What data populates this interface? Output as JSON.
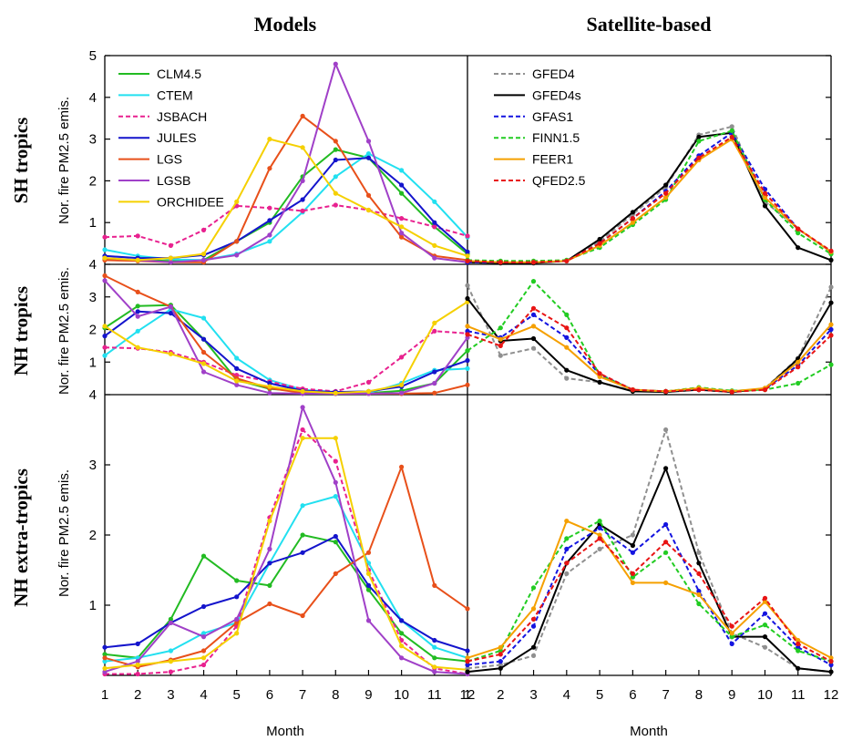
{
  "column_titles": [
    "Models",
    "Satellite-based"
  ],
  "row_titles": [
    "SH tropics",
    "NH tropics",
    "NH extra-tropics"
  ],
  "ylabel": "Nor. fire PM2.5 emis.",
  "xlabel": "Month",
  "x_ticks": [
    "1",
    "2",
    "3",
    "4",
    "5",
    "6",
    "7",
    "8",
    "9",
    "10",
    "11",
    "12"
  ],
  "y_ticks": {
    "sh": [
      "1",
      "2",
      "3",
      "4",
      "5"
    ],
    "nh": [
      "1",
      "2",
      "3",
      "4"
    ],
    "nhx": [
      "1",
      "2",
      "3",
      "4"
    ]
  },
  "colors": {
    "CLM4.5": "#22bb22",
    "CTEM": "#22e0f0",
    "JSBACH": "#e8218f",
    "JULES": "#1414cc",
    "LGS": "#e8501a",
    "LGSB": "#a040c8",
    "ORCHIDEE": "#f5d000",
    "GFED4": "#909090",
    "GFED4s": "#000000",
    "GFAS1": "#1414e0",
    "FINN1.5": "#22cc22",
    "FEER1": "#f5a000",
    "QFED2.5": "#e81414"
  },
  "chart_data": [
    {
      "type": "line",
      "panel": "sh-models",
      "ylim": [
        0,
        5
      ],
      "x": [
        1,
        2,
        3,
        4,
        5,
        6,
        7,
        8,
        9,
        10,
        11,
        12
      ],
      "legend_position": "top-left",
      "series": [
        {
          "name": "CLM4.5",
          "dashed": false,
          "values": [
            0.12,
            0.1,
            0.08,
            0.1,
            0.55,
            1.0,
            2.1,
            2.75,
            2.55,
            1.7,
            0.9,
            0.25
          ]
        },
        {
          "name": "CTEM",
          "dashed": false,
          "values": [
            0.35,
            0.2,
            0.12,
            0.1,
            0.25,
            0.55,
            1.25,
            2.1,
            2.65,
            2.25,
            1.5,
            0.65
          ]
        },
        {
          "name": "JSBACH",
          "dashed": true,
          "values": [
            0.65,
            0.68,
            0.45,
            0.82,
            1.4,
            1.35,
            1.28,
            1.42,
            1.3,
            1.1,
            0.9,
            0.68
          ]
        },
        {
          "name": "JULES",
          "dashed": false,
          "values": [
            0.2,
            0.15,
            0.15,
            0.22,
            0.55,
            1.05,
            1.55,
            2.5,
            2.55,
            1.9,
            1.0,
            0.3
          ]
        },
        {
          "name": "LGS",
          "dashed": false,
          "values": [
            0.1,
            0.08,
            0.05,
            0.05,
            0.55,
            2.3,
            3.55,
            2.95,
            1.65,
            0.65,
            0.2,
            0.1
          ]
        },
        {
          "name": "LGSB",
          "dashed": false,
          "values": [
            0.15,
            0.1,
            0.05,
            0.1,
            0.22,
            0.7,
            2.0,
            4.8,
            2.95,
            0.75,
            0.15,
            0.05
          ]
        },
        {
          "name": "ORCHIDEE",
          "dashed": false,
          "values": [
            0.15,
            0.1,
            0.15,
            0.25,
            1.5,
            3.0,
            2.8,
            1.7,
            1.3,
            0.9,
            0.45,
            0.2
          ]
        }
      ]
    },
    {
      "type": "line",
      "panel": "sh-satellite",
      "ylim": [
        0,
        5
      ],
      "x": [
        1,
        2,
        3,
        4,
        5,
        6,
        7,
        8,
        9,
        10,
        11,
        12
      ],
      "legend_position": "top-left",
      "series": [
        {
          "name": "GFED4",
          "dashed": true,
          "values": [
            0.05,
            0.05,
            0.05,
            0.08,
            0.55,
            1.2,
            1.85,
            3.1,
            3.3,
            1.5,
            0.85,
            0.3
          ]
        },
        {
          "name": "GFED4s",
          "dashed": false,
          "values": [
            0.05,
            0.03,
            0.03,
            0.08,
            0.6,
            1.25,
            1.9,
            3.05,
            3.15,
            1.4,
            0.4,
            0.1
          ]
        },
        {
          "name": "GFAS1",
          "dashed": true,
          "values": [
            0.05,
            0.05,
            0.05,
            0.08,
            0.5,
            1.1,
            1.75,
            2.6,
            3.15,
            1.8,
            0.85,
            0.3
          ]
        },
        {
          "name": "FINN1.5",
          "dashed": true,
          "values": [
            0.1,
            0.08,
            0.08,
            0.1,
            0.4,
            0.95,
            1.55,
            2.95,
            3.2,
            1.55,
            0.75,
            0.25
          ]
        },
        {
          "name": "FEER1",
          "dashed": false,
          "values": [
            0.08,
            0.05,
            0.05,
            0.08,
            0.45,
            1.0,
            1.6,
            2.5,
            3.0,
            1.6,
            0.85,
            0.3
          ]
        },
        {
          "name": "QFED2.5",
          "dashed": true,
          "values": [
            0.08,
            0.05,
            0.05,
            0.08,
            0.5,
            1.1,
            1.7,
            2.55,
            3.05,
            1.7,
            0.85,
            0.32
          ]
        }
      ]
    },
    {
      "type": "line",
      "panel": "nh-models",
      "ylim": [
        0,
        4
      ],
      "x": [
        1,
        2,
        3,
        4,
        5,
        6,
        7,
        8,
        9,
        10,
        11,
        12
      ],
      "series": [
        {
          "name": "CLM4.5",
          "dashed": false,
          "values": [
            2.05,
            2.72,
            2.75,
            1.7,
            0.45,
            0.18,
            0.1,
            0.08,
            0.05,
            0.12,
            0.35,
            1.35
          ]
        },
        {
          "name": "CTEM",
          "dashed": false,
          "values": [
            1.2,
            1.95,
            2.62,
            2.35,
            1.12,
            0.45,
            0.15,
            0.08,
            0.05,
            0.35,
            0.75,
            0.8
          ]
        },
        {
          "name": "JSBACH",
          "dashed": true,
          "values": [
            1.45,
            1.42,
            1.3,
            1.0,
            0.6,
            0.4,
            0.18,
            0.1,
            0.38,
            1.15,
            1.95,
            1.88
          ]
        },
        {
          "name": "JULES",
          "dashed": false,
          "values": [
            1.8,
            2.55,
            2.5,
            1.7,
            0.8,
            0.35,
            0.12,
            0.08,
            0.1,
            0.25,
            0.7,
            1.05
          ]
        },
        {
          "name": "LGS",
          "dashed": false,
          "values": [
            3.65,
            3.15,
            2.7,
            1.3,
            0.5,
            0.2,
            0.05,
            0.03,
            0.03,
            0.03,
            0.05,
            0.3
          ]
        },
        {
          "name": "LGSB",
          "dashed": false,
          "values": [
            3.5,
            2.4,
            2.7,
            0.7,
            0.3,
            0.05,
            0.03,
            0.03,
            0.03,
            0.05,
            0.35,
            1.75
          ]
        },
        {
          "name": "ORCHIDEE",
          "dashed": false,
          "values": [
            2.1,
            1.45,
            1.25,
            0.95,
            0.42,
            0.25,
            0.1,
            0.05,
            0.1,
            0.3,
            2.2,
            2.85
          ]
        }
      ]
    },
    {
      "type": "line",
      "panel": "nh-satellite",
      "ylim": [
        0,
        4
      ],
      "x": [
        1,
        2,
        3,
        4,
        5,
        6,
        7,
        8,
        9,
        10,
        11,
        12
      ],
      "series": [
        {
          "name": "GFED4",
          "dashed": true,
          "values": [
            3.35,
            1.2,
            1.42,
            0.5,
            0.38,
            0.12,
            0.1,
            0.15,
            0.08,
            0.2,
            1.12,
            3.3
          ]
        },
        {
          "name": "GFED4s",
          "dashed": false,
          "values": [
            2.95,
            1.65,
            1.72,
            0.75,
            0.38,
            0.1,
            0.08,
            0.15,
            0.08,
            0.18,
            1.1,
            2.82
          ]
        },
        {
          "name": "GFAS1",
          "dashed": true,
          "values": [
            1.95,
            1.75,
            2.45,
            1.75,
            0.62,
            0.15,
            0.1,
            0.18,
            0.1,
            0.18,
            0.9,
            2.0
          ]
        },
        {
          "name": "FINN1.5",
          "dashed": true,
          "values": [
            1.35,
            2.05,
            3.48,
            2.45,
            0.6,
            0.15,
            0.1,
            0.22,
            0.12,
            0.15,
            0.35,
            0.92
          ]
        },
        {
          "name": "FEER1",
          "dashed": false,
          "values": [
            2.1,
            1.7,
            2.1,
            1.45,
            0.55,
            0.15,
            0.1,
            0.2,
            0.1,
            0.2,
            1.0,
            2.15
          ]
        },
        {
          "name": "QFED2.5",
          "dashed": true,
          "values": [
            1.85,
            1.5,
            2.65,
            2.05,
            0.65,
            0.15,
            0.1,
            0.15,
            0.08,
            0.15,
            0.85,
            1.82
          ]
        }
      ]
    },
    {
      "type": "line",
      "panel": "nhx-models",
      "ylim": [
        0,
        4
      ],
      "x": [
        1,
        2,
        3,
        4,
        5,
        6,
        7,
        8,
        9,
        10,
        11,
        12
      ],
      "series": [
        {
          "name": "CLM4.5",
          "dashed": false,
          "values": [
            0.3,
            0.25,
            0.8,
            1.7,
            1.35,
            1.28,
            2.0,
            1.9,
            1.22,
            0.6,
            0.25,
            0.2
          ]
        },
        {
          "name": "CTEM",
          "dashed": false,
          "values": [
            0.2,
            0.25,
            0.35,
            0.6,
            0.75,
            1.6,
            2.42,
            2.55,
            1.6,
            0.78,
            0.4,
            0.25
          ]
        },
        {
          "name": "JSBACH",
          "dashed": true,
          "values": [
            0.02,
            0.02,
            0.05,
            0.15,
            0.7,
            2.25,
            3.5,
            3.05,
            1.5,
            0.5,
            0.1,
            0.02
          ]
        },
        {
          "name": "JULES",
          "dashed": false,
          "values": [
            0.4,
            0.45,
            0.75,
            0.98,
            1.12,
            1.6,
            1.75,
            1.98,
            1.28,
            0.78,
            0.5,
            0.35
          ]
        },
        {
          "name": "LGS",
          "dashed": false,
          "values": [
            0.25,
            0.12,
            0.22,
            0.35,
            0.75,
            1.02,
            0.85,
            1.45,
            1.75,
            2.97,
            1.28,
            0.95
          ]
        },
        {
          "name": "LGSB",
          "dashed": false,
          "values": [
            0.05,
            0.2,
            0.75,
            0.55,
            0.8,
            1.8,
            3.82,
            2.75,
            0.78,
            0.25,
            0.05,
            0.02
          ]
        },
        {
          "name": "ORCHIDEE",
          "dashed": false,
          "values": [
            0.1,
            0.15,
            0.2,
            0.25,
            0.6,
            2.2,
            3.38,
            3.38,
            1.45,
            0.42,
            0.12,
            0.08
          ]
        }
      ]
    },
    {
      "type": "line",
      "panel": "nhx-satellite",
      "ylim": [
        0,
        4
      ],
      "x": [
        1,
        2,
        3,
        4,
        5,
        6,
        7,
        8,
        9,
        10,
        11,
        12
      ],
      "series": [
        {
          "name": "GFED4",
          "dashed": true,
          "values": [
            0.1,
            0.15,
            0.28,
            1.45,
            1.8,
            2.0,
            3.5,
            1.75,
            0.6,
            0.4,
            0.1,
            0.05
          ]
        },
        {
          "name": "GFED4s",
          "dashed": false,
          "values": [
            0.05,
            0.1,
            0.4,
            1.6,
            2.15,
            1.85,
            2.95,
            1.6,
            0.55,
            0.55,
            0.1,
            0.05
          ]
        },
        {
          "name": "GFAS1",
          "dashed": true,
          "values": [
            0.15,
            0.2,
            0.7,
            1.8,
            2.1,
            1.75,
            2.15,
            1.2,
            0.45,
            0.88,
            0.4,
            0.15
          ]
        },
        {
          "name": "FINN1.5",
          "dashed": true,
          "values": [
            0.2,
            0.35,
            1.25,
            1.95,
            2.2,
            1.4,
            1.75,
            1.02,
            0.55,
            0.72,
            0.35,
            0.2
          ]
        },
        {
          "name": "FEER1",
          "dashed": false,
          "values": [
            0.25,
            0.4,
            0.95,
            2.2,
            2.0,
            1.32,
            1.32,
            1.15,
            0.6,
            1.05,
            0.5,
            0.25
          ]
        },
        {
          "name": "QFED2.5",
          "dashed": true,
          "values": [
            0.2,
            0.3,
            0.8,
            1.6,
            1.95,
            1.45,
            1.9,
            1.45,
            0.7,
            1.1,
            0.45,
            0.2
          ]
        }
      ]
    }
  ]
}
